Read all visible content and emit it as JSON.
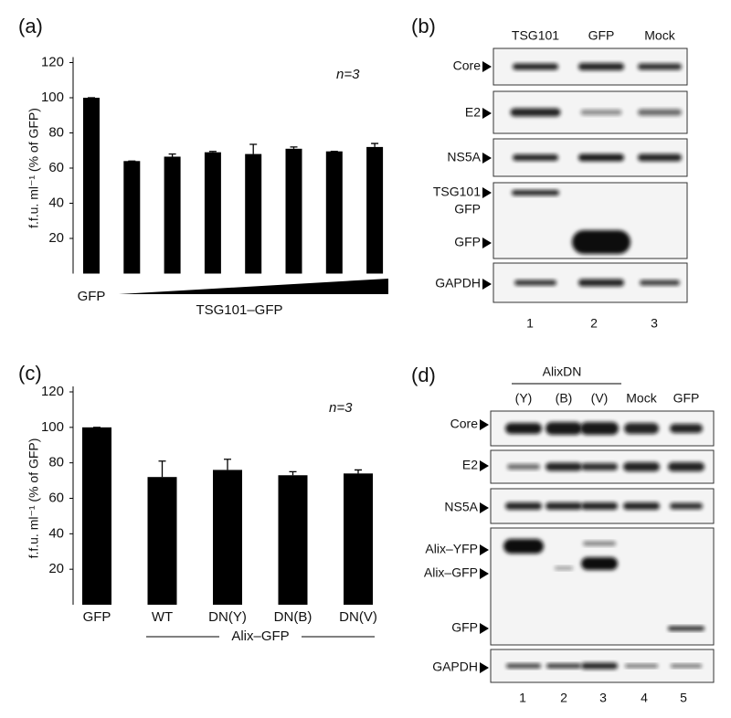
{
  "chart_data": [
    {
      "type": "bar",
      "panel_label": "(a)",
      "y_label": "f.f.u. ml⁻¹ (% of GFP)",
      "annotation": "n=3",
      "categories": [
        "GFP",
        null,
        null,
        null,
        null,
        null,
        null,
        null
      ],
      "values": [
        100,
        64,
        66.5,
        69,
        68,
        71,
        69.5,
        72
      ],
      "errors": [
        0,
        0,
        1.5,
        0.5,
        5.5,
        1,
        0,
        2
      ],
      "group_label": "TSG101–GFP",
      "color": "#000000",
      "ylim": [
        0,
        120
      ],
      "yticks": [
        20,
        40,
        60,
        80,
        100,
        120
      ]
    },
    {
      "type": "bar",
      "panel_label": "(c)",
      "y_label": "f.f.u. ml⁻¹ (% of GFP)",
      "annotation": "n=3",
      "categories": [
        "GFP",
        "WT",
        "DN(Y)",
        "DN(B)",
        "DN(V)"
      ],
      "values": [
        100,
        72,
        76,
        73,
        74
      ],
      "errors": [
        0,
        9,
        6,
        2,
        2
      ],
      "group_label": "Alix–GFP",
      "color": "#000000",
      "ylim": [
        0,
        120
      ],
      "yticks": [
        20,
        40,
        60,
        80,
        100,
        120
      ]
    }
  ],
  "blots": [
    {
      "panel_label": "(b)",
      "lanes": [
        "TSG101",
        "GFP",
        "Mock"
      ],
      "markers": [
        "Core",
        "E2",
        "NS5A",
        "TSG101",
        "GFP",
        "GFP",
        "GAPDH"
      ],
      "lane_numbers": [
        "1",
        "2",
        "3"
      ]
    },
    {
      "panel_label": "(d)",
      "group": "AlixDN",
      "lanes": [
        "(Y)",
        "(B)",
        "(V)",
        "Mock",
        "GFP"
      ],
      "markers": [
        "Core",
        "E2",
        "NS5A",
        "Alix–YFP",
        "Alix–GFP",
        "GFP",
        "GAPDH"
      ],
      "lane_numbers": [
        "1",
        "2",
        "3",
        "4",
        "5"
      ]
    }
  ]
}
